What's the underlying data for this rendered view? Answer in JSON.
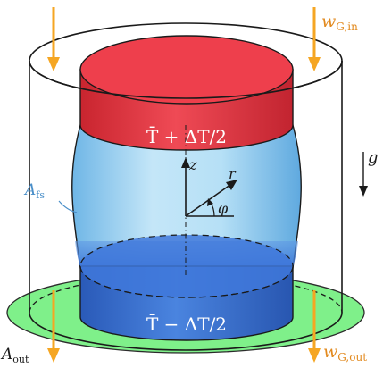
{
  "labels": {
    "inflow_var": "w",
    "inflow_sub": "G,in",
    "outflow_var": "w",
    "outflow_sub": "G,out",
    "gravity": "g",
    "z_axis": "z",
    "r_axis": "r",
    "phi": "φ",
    "free_surface_var": "A",
    "free_surface_sub": "fs",
    "outlet_area_var": "A",
    "outlet_area_sub": "out",
    "top_plate": "T̄ + ΔT/2",
    "bottom_plate": "T̄ − ΔT/2"
  },
  "colors": {
    "hot_plate": "#e8394a",
    "hot_plate_dark": "#c9252f",
    "hot_plate_top": "#f04a56",
    "cold_plate": "#3b74d6",
    "cold_plate_dark": "#2a5ab8",
    "cold_plate_top": "#4e88e6",
    "liquid_bridge": "#a9d8f3",
    "outlet_area": "#7ff08a",
    "arrow": "#f5a623",
    "label_blue": "#4a8fc9",
    "label_orange": "#e2891d"
  }
}
